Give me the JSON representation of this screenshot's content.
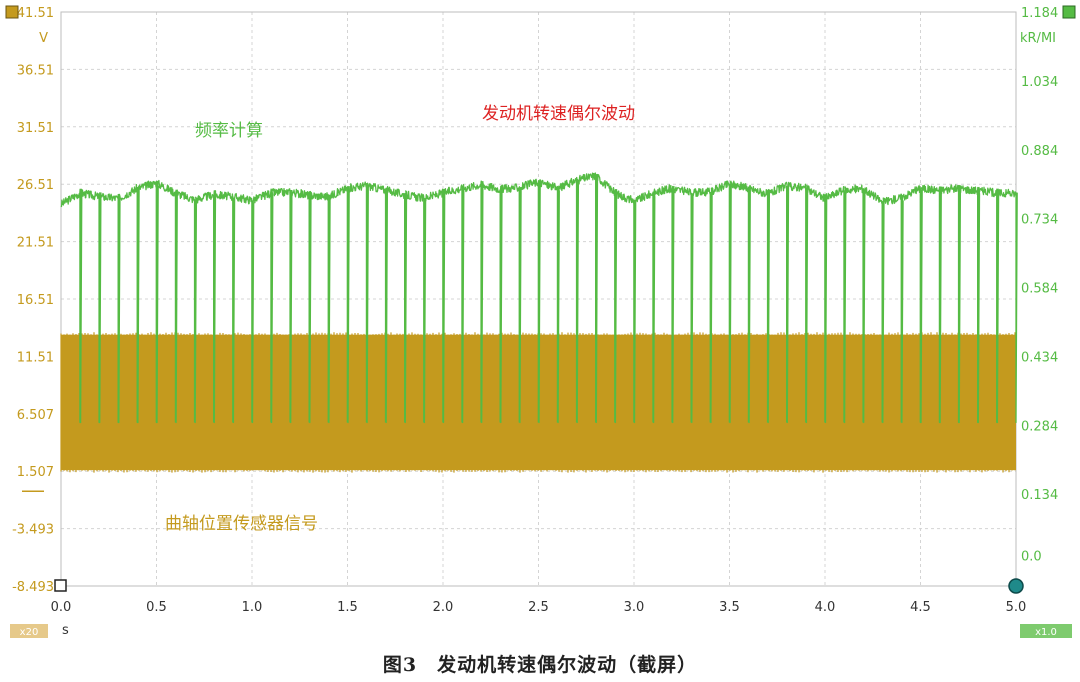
{
  "caption": "图3　发动机转速偶尔波动（截屏）",
  "chart_data": {
    "type": "line",
    "x": {
      "label": "s",
      "min": 0.0,
      "max": 5.0,
      "ticks": [
        "0.0",
        "0.5",
        "1.0",
        "1.5",
        "2.0",
        "2.5",
        "3.0",
        "3.5",
        "4.0",
        "4.5",
        "5.0"
      ],
      "zoom_badge": "x20"
    },
    "y_left": {
      "unit": "V",
      "min": -8.493,
      "max": 41.51,
      "ticks": [
        "41.51",
        "36.51",
        "31.51",
        "26.51",
        "21.51",
        "16.51",
        "11.51",
        "6.507",
        "1.507",
        "-3.493",
        "-8.493"
      ]
    },
    "y_right": {
      "unit": "kR/MI",
      "min": -0.066,
      "max": 1.184,
      "ticks": [
        "1.184",
        "1.034",
        "0.884",
        "0.734",
        "0.584",
        "0.434",
        "0.284",
        "0.134",
        "0.0"
      ],
      "zoom_badge": "x1.0"
    },
    "grid": true,
    "colors": {
      "rpm": "#55bb44",
      "ckp": "#c49a1e",
      "red_annotation": "#dd2222",
      "grid": "#d4d4d4"
    },
    "annotations": {
      "rpm_label": "频率计算",
      "ckp_label": "曲轴位置传感器信号",
      "title_note": "发动机转速偶尔波动"
    },
    "series": [
      {
        "name": "频率计算",
        "axis": "right",
        "baseline": 0.29,
        "x": [
          0.0,
          0.1,
          0.2,
          0.3,
          0.4,
          0.5,
          0.6,
          0.7,
          0.8,
          0.9,
          1.0,
          1.1,
          1.2,
          1.3,
          1.4,
          1.5,
          1.6,
          1.7,
          1.8,
          1.9,
          2.0,
          2.1,
          2.2,
          2.3,
          2.4,
          2.5,
          2.6,
          2.7,
          2.8,
          2.9,
          3.0,
          3.1,
          3.2,
          3.3,
          3.4,
          3.5,
          3.6,
          3.7,
          3.8,
          3.9,
          4.0,
          4.1,
          4.2,
          4.3,
          4.4,
          4.5,
          4.6,
          4.7,
          4.8,
          4.9,
          5.0
        ],
        "upper": [
          0.765,
          0.79,
          0.782,
          0.778,
          0.8,
          0.812,
          0.79,
          0.775,
          0.786,
          0.782,
          0.774,
          0.79,
          0.792,
          0.785,
          0.782,
          0.8,
          0.806,
          0.796,
          0.786,
          0.778,
          0.79,
          0.8,
          0.808,
          0.798,
          0.802,
          0.814,
          0.8,
          0.818,
          0.828,
          0.79,
          0.772,
          0.79,
          0.8,
          0.79,
          0.792,
          0.81,
          0.8,
          0.788,
          0.805,
          0.8,
          0.778,
          0.796,
          0.8,
          0.77,
          0.78,
          0.8,
          0.796,
          0.8,
          0.795,
          0.79,
          0.788
        ],
        "pulse_count": 50
      },
      {
        "name": "曲轴位置传感器信号",
        "axis": "left",
        "low": 1.6,
        "high": 13.4
      }
    ]
  }
}
